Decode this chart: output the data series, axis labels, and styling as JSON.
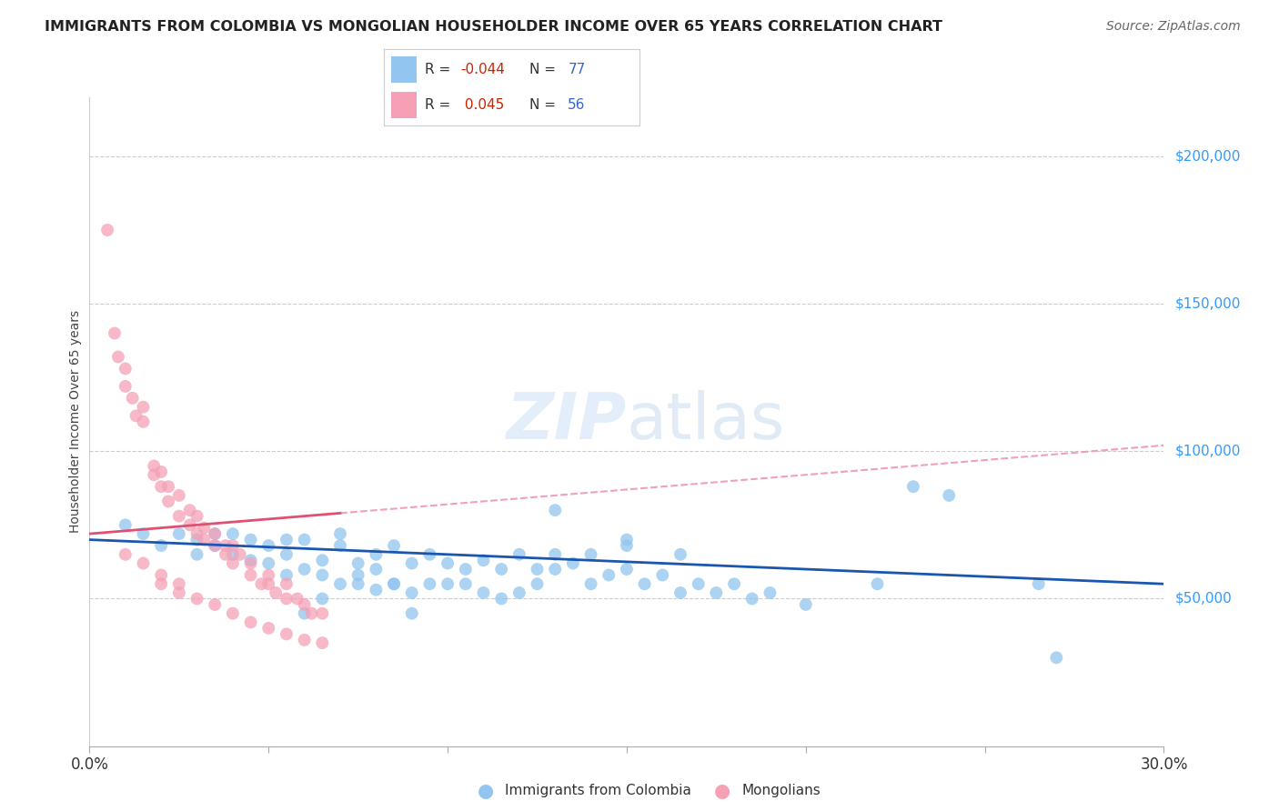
{
  "title": "IMMIGRANTS FROM COLOMBIA VS MONGOLIAN HOUSEHOLDER INCOME OVER 65 YEARS CORRELATION CHART",
  "source": "Source: ZipAtlas.com",
  "ylabel": "Householder Income Over 65 years",
  "xlim": [
    0.0,
    0.3
  ],
  "ylim": [
    0,
    220000
  ],
  "blue_color": "#92C5F0",
  "pink_color": "#F5A0B5",
  "blue_line_color": "#1A56B0",
  "pink_line_solid_color": "#E05070",
  "pink_line_dash_color": "#F0A0B8",
  "legend_blue_r": "-0.044",
  "legend_blue_n": "77",
  "legend_pink_r": "0.045",
  "legend_pink_n": "56",
  "watermark_zip": "ZIP",
  "watermark_atlas": "atlas",
  "grid_color": "#CCCCCC",
  "blue_scatter_x": [
    0.01,
    0.015,
    0.02,
    0.025,
    0.03,
    0.03,
    0.035,
    0.035,
    0.04,
    0.04,
    0.045,
    0.045,
    0.05,
    0.05,
    0.055,
    0.055,
    0.055,
    0.06,
    0.06,
    0.065,
    0.065,
    0.07,
    0.07,
    0.075,
    0.075,
    0.08,
    0.08,
    0.085,
    0.085,
    0.09,
    0.09,
    0.095,
    0.095,
    0.1,
    0.1,
    0.105,
    0.105,
    0.11,
    0.11,
    0.115,
    0.115,
    0.12,
    0.12,
    0.125,
    0.125,
    0.13,
    0.13,
    0.135,
    0.14,
    0.14,
    0.145,
    0.15,
    0.15,
    0.155,
    0.16,
    0.165,
    0.17,
    0.175,
    0.18,
    0.185,
    0.19,
    0.2,
    0.22,
    0.23,
    0.24,
    0.265,
    0.27,
    0.13,
    0.15,
    0.165,
    0.09,
    0.06,
    0.065,
    0.07,
    0.075,
    0.08,
    0.085
  ],
  "blue_scatter_y": [
    75000,
    72000,
    68000,
    72000,
    65000,
    70000,
    68000,
    72000,
    65000,
    72000,
    63000,
    70000,
    62000,
    68000,
    58000,
    65000,
    70000,
    60000,
    70000,
    58000,
    63000,
    55000,
    68000,
    55000,
    62000,
    53000,
    65000,
    55000,
    68000,
    52000,
    62000,
    55000,
    65000,
    55000,
    62000,
    55000,
    60000,
    52000,
    63000,
    50000,
    60000,
    52000,
    65000,
    55000,
    60000,
    60000,
    65000,
    62000,
    55000,
    65000,
    58000,
    60000,
    68000,
    55000,
    58000,
    52000,
    55000,
    52000,
    55000,
    50000,
    52000,
    48000,
    55000,
    88000,
    85000,
    55000,
    30000,
    80000,
    70000,
    65000,
    45000,
    45000,
    50000,
    72000,
    58000,
    60000,
    55000
  ],
  "pink_scatter_x": [
    0.005,
    0.007,
    0.008,
    0.01,
    0.01,
    0.012,
    0.013,
    0.015,
    0.015,
    0.018,
    0.018,
    0.02,
    0.02,
    0.022,
    0.022,
    0.025,
    0.025,
    0.028,
    0.028,
    0.03,
    0.03,
    0.032,
    0.032,
    0.035,
    0.035,
    0.038,
    0.038,
    0.04,
    0.04,
    0.042,
    0.045,
    0.045,
    0.048,
    0.05,
    0.05,
    0.052,
    0.055,
    0.055,
    0.058,
    0.06,
    0.062,
    0.065,
    0.01,
    0.015,
    0.02,
    0.025,
    0.03,
    0.035,
    0.04,
    0.045,
    0.05,
    0.055,
    0.06,
    0.065,
    0.02,
    0.025
  ],
  "pink_scatter_y": [
    175000,
    140000,
    132000,
    122000,
    128000,
    118000,
    112000,
    110000,
    115000,
    92000,
    95000,
    88000,
    93000,
    83000,
    88000,
    78000,
    85000,
    75000,
    80000,
    72000,
    78000,
    70000,
    74000,
    68000,
    72000,
    65000,
    68000,
    62000,
    68000,
    65000,
    62000,
    58000,
    55000,
    55000,
    58000,
    52000,
    50000,
    55000,
    50000,
    48000,
    45000,
    45000,
    65000,
    62000,
    55000,
    52000,
    50000,
    48000,
    45000,
    42000,
    40000,
    38000,
    36000,
    35000,
    58000,
    55000
  ]
}
